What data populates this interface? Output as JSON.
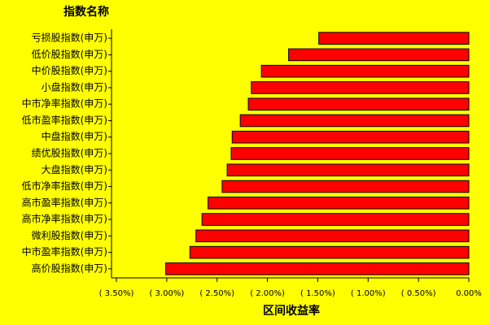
{
  "chart_data": {
    "type": "barh",
    "title": "指数名称",
    "x_label": "区间收益率",
    "categories": [
      "亏损股指数(申万)",
      "低价股指数(申万)",
      "中价股指数(申万)",
      "小盘指数(申万)",
      "中市净率指数(申万)",
      "低市盈率指数(申万)",
      "中盘指数(申万)",
      "绩优股指数(申万)",
      "大盘指数(申万)",
      "低市净率指数(申万)",
      "高市盈率指数(申万)",
      "高市净率指数(申万)",
      "微利股指数(申万)",
      "中市盈率指数(申万)",
      "高价股指数(申万)"
    ],
    "values": [
      -1.49,
      -1.79,
      -2.06,
      -2.16,
      -2.19,
      -2.27,
      -2.35,
      -2.36,
      -2.4,
      -2.45,
      -2.59,
      -2.65,
      -2.71,
      -2.77,
      -3.01
    ],
    "color": "#ff0000",
    "xlim": [
      -3.5,
      0
    ],
    "xticks": [
      {
        "value": -3.5,
        "label": "( 3.50%)"
      },
      {
        "value": -3.0,
        "label": "( 3.00%)"
      },
      {
        "value": -2.5,
        "label": "( 2.50%)"
      },
      {
        "value": -2.0,
        "label": "( 2.00%)"
      },
      {
        "value": -1.5,
        "label": "( 1.50%)"
      },
      {
        "value": -1.0,
        "label": "( 1.00%)"
      },
      {
        "value": -0.5,
        "label": "( 0.50%)"
      },
      {
        "value": 0,
        "label": "0.00%"
      }
    ]
  }
}
